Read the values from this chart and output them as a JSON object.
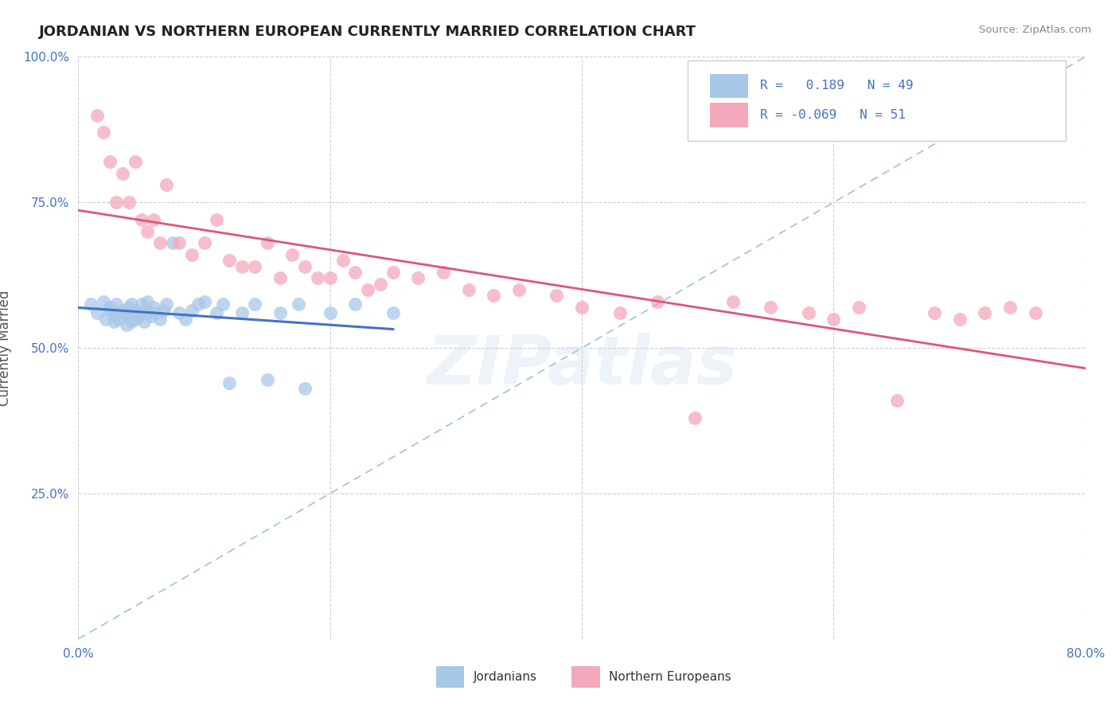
{
  "title": "JORDANIAN VS NORTHERN EUROPEAN CURRENTLY MARRIED CORRELATION CHART",
  "source": "Source: ZipAtlas.com",
  "ylabel": "Currently Married",
  "watermark": "ZIPatlas",
  "xlim": [
    0.0,
    0.8
  ],
  "ylim": [
    0.0,
    1.0
  ],
  "R_jordan": 0.189,
  "N_jordan": 49,
  "R_northern": -0.069,
  "N_northern": 51,
  "jordanians_color": "#a8c8e8",
  "northern_europeans_color": "#f4a8bc",
  "trend_jordan_color": "#4472c4",
  "trend_northern_color": "#e05575",
  "trend_dashed_color": "#a0c0e0",
  "legend_jordan_label": "Jordanians",
  "legend_northern_label": "Northern Europeans",
  "background_color": "#ffffff",
  "grid_color": "#d0d0d0",
  "title_color": "#222222",
  "axis_label_color": "#555555",
  "tick_color": "#4472c4",
  "source_color": "#888888",
  "jordanians_x": [
    0.01,
    0.015,
    0.02,
    0.022,
    0.025,
    0.025,
    0.028,
    0.03,
    0.03,
    0.032,
    0.035,
    0.035,
    0.038,
    0.04,
    0.04,
    0.042,
    0.042,
    0.045,
    0.045,
    0.048,
    0.05,
    0.05,
    0.052,
    0.055,
    0.055,
    0.058,
    0.06,
    0.062,
    0.065,
    0.068,
    0.07,
    0.075,
    0.08,
    0.085,
    0.09,
    0.095,
    0.1,
    0.11,
    0.115,
    0.12,
    0.13,
    0.14,
    0.15,
    0.16,
    0.175,
    0.18,
    0.2,
    0.22,
    0.25
  ],
  "jordanians_y": [
    0.575,
    0.56,
    0.58,
    0.55,
    0.565,
    0.57,
    0.545,
    0.56,
    0.575,
    0.55,
    0.56,
    0.565,
    0.54,
    0.555,
    0.57,
    0.545,
    0.575,
    0.55,
    0.565,
    0.555,
    0.56,
    0.575,
    0.545,
    0.56,
    0.58,
    0.555,
    0.57,
    0.56,
    0.55,
    0.565,
    0.575,
    0.68,
    0.56,
    0.55,
    0.565,
    0.575,
    0.58,
    0.56,
    0.575,
    0.44,
    0.56,
    0.575,
    0.445,
    0.56,
    0.575,
    0.43,
    0.56,
    0.575,
    0.56
  ],
  "northern_europeans_x": [
    0.015,
    0.02,
    0.025,
    0.03,
    0.035,
    0.04,
    0.045,
    0.05,
    0.055,
    0.06,
    0.065,
    0.07,
    0.08,
    0.09,
    0.1,
    0.11,
    0.12,
    0.13,
    0.14,
    0.15,
    0.16,
    0.17,
    0.18,
    0.19,
    0.2,
    0.21,
    0.22,
    0.23,
    0.24,
    0.25,
    0.27,
    0.29,
    0.31,
    0.33,
    0.35,
    0.38,
    0.4,
    0.43,
    0.46,
    0.49,
    0.52,
    0.55,
    0.58,
    0.6,
    0.62,
    0.65,
    0.68,
    0.7,
    0.72,
    0.74,
    0.76
  ],
  "northern_europeans_y": [
    0.9,
    0.87,
    0.82,
    0.75,
    0.8,
    0.75,
    0.82,
    0.72,
    0.7,
    0.72,
    0.68,
    0.78,
    0.68,
    0.66,
    0.68,
    0.72,
    0.65,
    0.64,
    0.64,
    0.68,
    0.62,
    0.66,
    0.64,
    0.62,
    0.62,
    0.65,
    0.63,
    0.6,
    0.61,
    0.63,
    0.62,
    0.63,
    0.6,
    0.59,
    0.6,
    0.59,
    0.57,
    0.56,
    0.58,
    0.38,
    0.58,
    0.57,
    0.56,
    0.55,
    0.57,
    0.41,
    0.56,
    0.55,
    0.56,
    0.57,
    0.56
  ]
}
